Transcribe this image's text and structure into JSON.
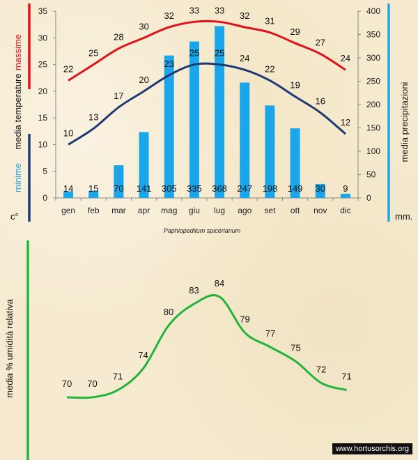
{
  "colors": {
    "max_line": "#e0111b",
    "min_line": "#1f3a73",
    "bars": "#1aa6e8",
    "humidity": "#21b33a",
    "divider": "#1aa6e8"
  },
  "species": "Paphiopedilum spicerianum",
  "watermark": "www.hortusorchis.org",
  "chart_data": [
    {
      "type": "bar+line",
      "categories": [
        "gen",
        "feb",
        "mar",
        "apr",
        "mag",
        "giu",
        "lug",
        "ago",
        "set",
        "ott",
        "nov",
        "dic"
      ],
      "left_axis": {
        "ylim": [
          0,
          35
        ],
        "ticks": [
          0,
          5,
          10,
          15,
          20,
          25,
          30,
          35
        ],
        "unit": "c°",
        "labels": {
          "max": "massime",
          "mean": "media  temperature",
          "min": "minime"
        }
      },
      "right_axis": {
        "ylim": [
          0,
          400
        ],
        "ticks": [
          0,
          50,
          100,
          150,
          200,
          250,
          300,
          350,
          400
        ],
        "unit": "mm.",
        "label": "media  precipitazioni"
      },
      "series": [
        {
          "name": "massime",
          "values": [
            22,
            25,
            28,
            30,
            32,
            33,
            33,
            32,
            31,
            29,
            27,
            24
          ]
        },
        {
          "name": "minime",
          "values": [
            10,
            13,
            17,
            20,
            23,
            25,
            25,
            24,
            22,
            19,
            16,
            12
          ]
        },
        {
          "name": "media precipitazioni",
          "values": [
            14,
            15,
            70,
            141,
            305,
            335,
            368,
            247,
            198,
            149,
            30,
            9
          ]
        }
      ]
    },
    {
      "type": "line",
      "title": "",
      "ylabel": "media %  umidità relativa",
      "categories": [
        "gen",
        "feb",
        "mar",
        "apr",
        "mag",
        "giu",
        "lug",
        "ago",
        "set",
        "ott",
        "nov",
        "dic"
      ],
      "series": [
        {
          "name": "media % umidità relativa",
          "values": [
            70,
            70,
            71,
            74,
            80,
            83,
            84,
            79,
            77,
            75,
            72,
            71
          ]
        }
      ]
    }
  ]
}
